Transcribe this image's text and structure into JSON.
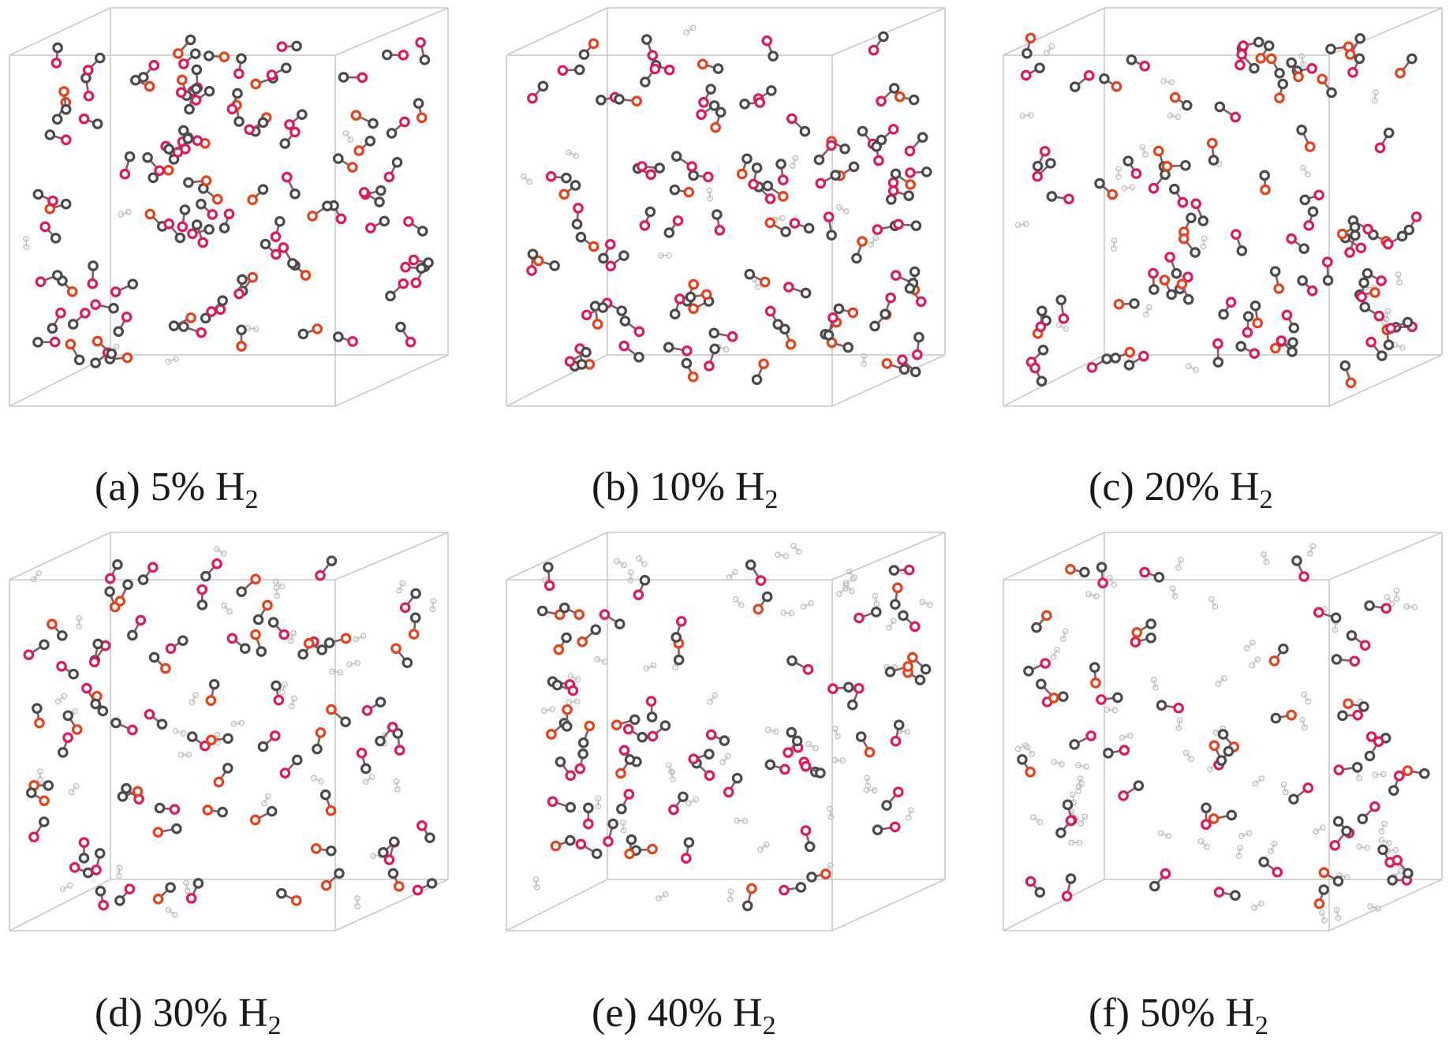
{
  "figure": {
    "panels": [
      {
        "label": "(a)",
        "percent": "5%",
        "species": "H",
        "subscript": "2",
        "h2_fraction": 0.05
      },
      {
        "label": "(b)",
        "percent": "10%",
        "species": "H",
        "subscript": "2",
        "h2_fraction": 0.1
      },
      {
        "label": "(c)",
        "percent": "20%",
        "species": "H",
        "subscript": "2",
        "h2_fraction": 0.2
      },
      {
        "label": "(d)",
        "percent": "30%",
        "species": "H",
        "subscript": "2",
        "h2_fraction": 0.3
      },
      {
        "label": "(e)",
        "percent": "40%",
        "species": "H",
        "subscript": "2",
        "h2_fraction": 0.4
      },
      {
        "label": "(f)",
        "percent": "50%",
        "species": "H",
        "subscript": "2",
        "h2_fraction": 0.5
      }
    ],
    "colors": {
      "box_edge": "#c8c8c8",
      "carbon": "#4a4a4a",
      "oxygen": "#e0185a",
      "oxygen_alt": "#e8401a",
      "hydrogen": "#bdbdbd",
      "bond": "#8a5a5a"
    }
  }
}
